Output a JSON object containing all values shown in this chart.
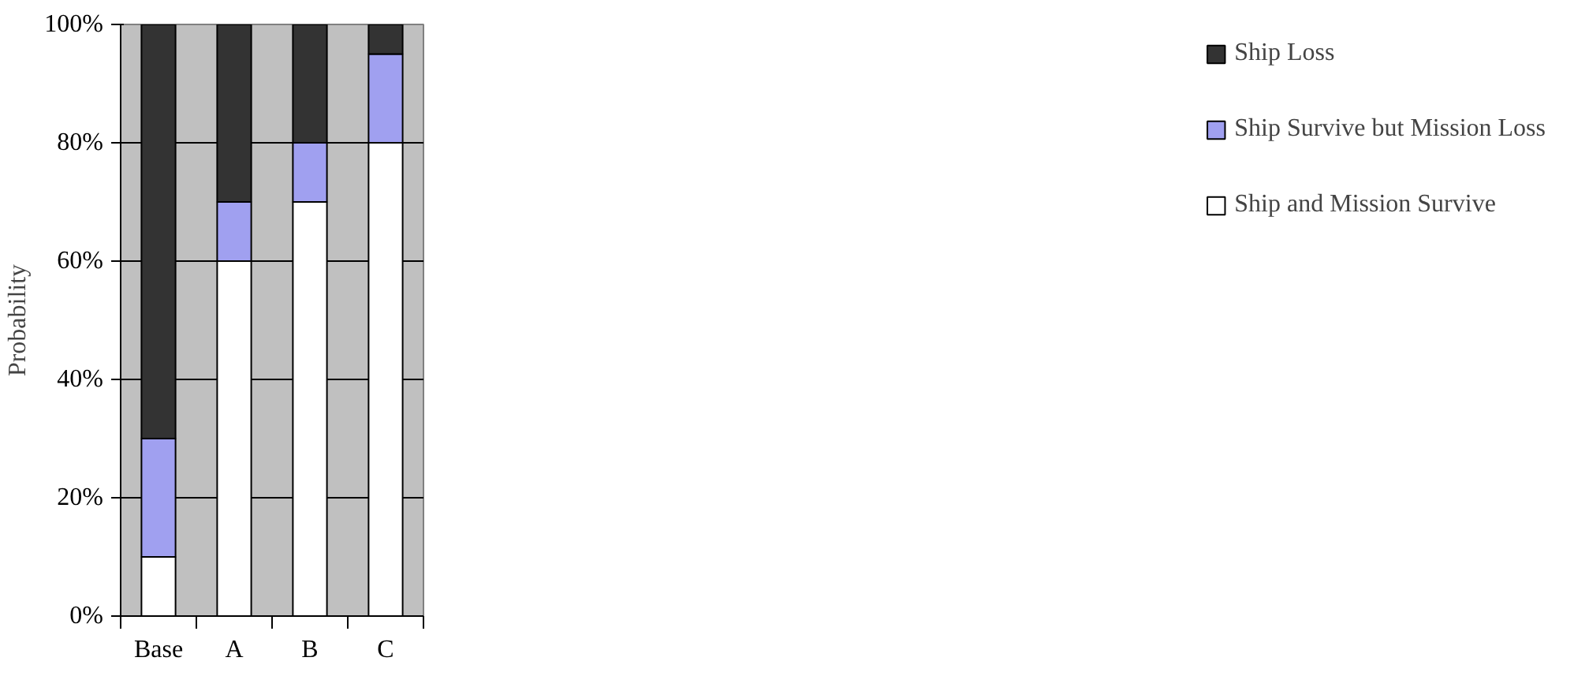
{
  "chart_data": {
    "type": "bar",
    "stacked": true,
    "ylabel": "Probability",
    "categories": [
      "Base",
      "A",
      "B",
      "C"
    ],
    "series": [
      {
        "name": "Ship and Mission Survive",
        "color": "#ffffff",
        "values": [
          10,
          60,
          70,
          80
        ]
      },
      {
        "name": "Ship Survive but Mission Loss",
        "color": "#a0a0f0",
        "values": [
          20,
          10,
          10,
          15
        ]
      },
      {
        "name": "Ship Loss",
        "color": "#333333",
        "values": [
          70,
          30,
          20,
          5
        ]
      }
    ],
    "ylim": [
      0,
      100
    ],
    "yticks": [
      {
        "value": 0,
        "label": "0%"
      },
      {
        "value": 20,
        "label": "20%"
      },
      {
        "value": 40,
        "label": "40%"
      },
      {
        "value": 60,
        "label": "60%"
      },
      {
        "value": 80,
        "label": "80%"
      },
      {
        "value": 100,
        "label": "100%"
      }
    ],
    "grid": "y",
    "legend": "right"
  }
}
